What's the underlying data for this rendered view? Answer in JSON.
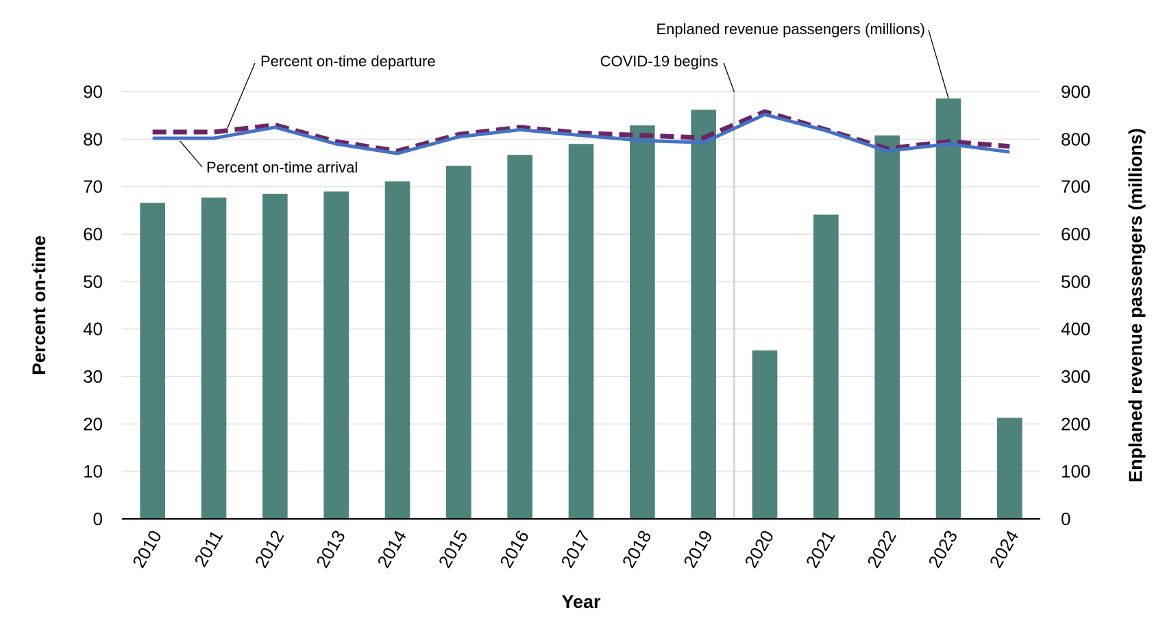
{
  "chart_data": {
    "type": "bar",
    "categories": [
      "2010",
      "2011",
      "2012",
      "2013",
      "2014",
      "2015",
      "2016",
      "2017",
      "2018",
      "2019",
      "2020",
      "2021",
      "2022",
      "2023",
      "2024"
    ],
    "series": [
      {
        "type": "bar",
        "axis": "right",
        "color": "#4e837c",
        "values": [
          666,
          677,
          685,
          690,
          711,
          744,
          767,
          790,
          829,
          862,
          355,
          641,
          808,
          886,
          213
        ]
      },
      {
        "type": "line",
        "axis": "left",
        "style": "dashed",
        "color": "#6b2565",
        "values": [
          81.5,
          81.5,
          83,
          79.5,
          77.5,
          81,
          82.5,
          81.3,
          80.8,
          80.3,
          85.8,
          82,
          78,
          79.5,
          78.5
        ]
      },
      {
        "type": "line",
        "axis": "left",
        "style": "solid",
        "color": "#4472c4",
        "values": [
          80.2,
          80.2,
          82.5,
          79,
          77,
          80.5,
          82,
          80.8,
          79.7,
          79.3,
          85.2,
          81.8,
          77.5,
          79,
          77.3
        ]
      }
    ],
    "xlabel": "Year",
    "ylabel": "Percent on-time",
    "ylabel_right": "Enplaned revenue passengers (millions)",
    "ylim": [
      0,
      90
    ],
    "ylim_right": [
      0,
      900
    ],
    "yticks": [
      "0",
      "10",
      "20",
      "30",
      "40",
      "50",
      "60",
      "70",
      "80",
      "90"
    ],
    "yticks_right": [
      "0",
      "100",
      "200",
      "300",
      "400",
      "500",
      "600",
      "700",
      "800",
      "900"
    ],
    "grid": true,
    "annotations": [
      {
        "text": "Percent on-time departure",
        "target_series": 1,
        "target_index": 1
      },
      {
        "text": "Percent on-time arrival",
        "target_series": 2,
        "target_index": 0
      },
      {
        "text": "Enplaned revenue passengers (millions)",
        "target_series": 0,
        "target_index": 13
      },
      {
        "text": "COVID-19 begins",
        "between_indices": [
          9,
          10
        ]
      }
    ]
  }
}
